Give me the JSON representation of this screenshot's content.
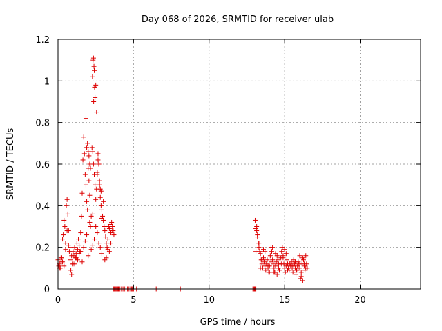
{
  "chart_data": {
    "type": "scatter",
    "title": "Day 068 of 2026, SRMTID for receiver ulab",
    "xlabel": "GPS time / hours",
    "ylabel": "SRMTID / TECUs",
    "xlim": [
      0,
      24
    ],
    "ylim": [
      0,
      1.2
    ],
    "xticks": [
      0,
      5,
      10,
      15,
      20
    ],
    "xtick_labels": [
      "0",
      "5",
      "10",
      "15",
      "20"
    ],
    "yticks": [
      0,
      0.2,
      0.4,
      0.6,
      0.8,
      1.0,
      1.2
    ],
    "ytick_labels": [
      "0",
      "0.2",
      "0.4",
      "0.6",
      "0.8",
      "1",
      "1.2"
    ],
    "grid": true,
    "marker": "+",
    "color": "#dd0000",
    "series": [
      {
        "name": "SRMTID",
        "x": [
          0.0,
          0.05,
          0.1,
          0.15,
          0.2,
          0.25,
          0.3,
          0.35,
          0.4,
          0.45,
          0.5,
          0.55,
          0.6,
          0.65,
          0.7,
          0.75,
          0.8,
          0.85,
          0.9,
          0.95,
          1.0,
          1.05,
          1.1,
          1.15,
          1.2,
          1.25,
          1.3,
          1.35,
          1.4,
          1.45,
          1.5,
          1.55,
          1.6,
          1.65,
          1.7,
          1.75,
          1.8,
          1.85,
          1.9,
          1.95,
          2.0,
          2.05,
          2.1,
          2.15,
          2.2,
          2.25,
          2.3,
          2.35,
          2.4,
          2.45,
          2.5,
          2.55,
          2.6,
          2.65,
          2.7,
          2.75,
          2.8,
          2.85,
          2.9,
          2.95,
          3.0,
          3.05,
          3.1,
          3.15,
          3.2,
          3.25,
          3.3,
          3.35,
          3.4,
          3.45,
          3.5,
          3.55,
          3.6,
          3.65,
          3.7,
          0.1,
          0.3,
          0.5,
          0.7,
          0.9,
          1.1,
          1.3,
          1.5,
          1.7,
          1.9,
          2.1,
          2.3,
          2.5,
          2.7,
          2.9,
          3.1,
          3.3,
          3.5,
          0.2,
          0.6,
          1.0,
          1.4,
          1.8,
          2.2,
          2.6,
          3.0,
          3.4,
          0.4,
          0.8,
          1.2,
          1.6,
          2.0,
          2.4,
          2.8,
          3.2,
          2.3,
          2.35,
          2.32,
          2.38,
          2.4,
          2.42,
          2.45,
          2.36,
          2.28,
          2.5,
          2.55,
          1.85,
          1.9,
          1.95,
          2.0,
          2.05,
          2.1,
          2.15,
          2.6,
          2.65,
          2.7,
          2.75,
          2.8,
          2.85,
          2.9,
          3.6,
          3.65,
          3.7,
          3.75,
          3.8,
          3.85,
          3.9,
          3.95,
          4.0,
          4.1,
          4.2,
          4.3,
          4.4,
          4.5,
          4.6,
          4.7,
          4.8,
          4.85,
          4.9,
          4.95,
          5.0,
          5.2,
          6.5,
          8.1,
          12.9,
          12.95,
          13.0,
          13.05,
          13.1,
          13.0,
          13.05,
          13.1,
          13.15,
          13.2,
          13.25,
          13.3,
          13.35,
          13.4,
          13.45,
          13.5,
          13.55,
          13.6,
          13.65,
          13.7,
          13.75,
          13.8,
          13.85,
          13.9,
          13.95,
          14.0,
          14.05,
          14.1,
          14.15,
          14.2,
          14.25,
          14.3,
          14.35,
          14.4,
          14.45,
          14.5,
          14.55,
          14.6,
          14.65,
          14.7,
          14.75,
          14.8,
          14.85,
          14.9,
          14.95,
          15.0,
          15.05,
          15.1,
          15.15,
          15.2,
          15.25,
          15.3,
          15.35,
          15.4,
          15.45,
          15.5,
          15.55,
          15.6,
          15.65,
          15.7,
          15.75,
          15.8,
          15.85,
          15.9,
          15.95,
          16.0,
          16.05,
          16.1,
          16.15,
          16.2,
          16.25,
          16.3,
          16.35,
          16.4,
          16.45,
          16.5,
          13.1,
          13.3,
          13.5,
          13.7,
          13.9,
          14.1,
          14.3,
          14.5,
          14.7,
          14.9,
          15.1,
          15.3,
          15.5,
          15.7,
          15.9,
          16.1,
          16.3,
          13.2,
          13.6,
          14.0,
          14.4,
          14.8,
          15.2,
          15.6,
          16.0,
          16.4,
          13.15,
          13.4,
          14.2,
          14.6,
          15.0,
          15.8,
          16.2
        ],
        "y": [
          0.14,
          0.11,
          0.12,
          0.1,
          0.13,
          0.15,
          0.24,
          0.26,
          0.33,
          0.3,
          0.22,
          0.4,
          0.43,
          0.36,
          0.28,
          0.18,
          0.14,
          0.09,
          0.07,
          0.12,
          0.18,
          0.16,
          0.2,
          0.15,
          0.17,
          0.22,
          0.19,
          0.24,
          0.21,
          0.18,
          0.27,
          0.35,
          0.46,
          0.62,
          0.73,
          0.65,
          0.55,
          0.5,
          0.42,
          0.38,
          0.58,
          0.52,
          0.45,
          0.3,
          0.35,
          0.68,
          0.66,
          0.6,
          0.55,
          0.5,
          0.43,
          0.48,
          0.56,
          0.62,
          0.6,
          0.5,
          0.44,
          0.47,
          0.38,
          0.35,
          0.42,
          0.3,
          0.28,
          0.25,
          0.22,
          0.2,
          0.24,
          0.3,
          0.29,
          0.31,
          0.27,
          0.32,
          0.3,
          0.28,
          0.26,
          0.1,
          0.13,
          0.19,
          0.21,
          0.16,
          0.12,
          0.14,
          0.18,
          0.2,
          0.26,
          0.32,
          0.36,
          0.3,
          0.22,
          0.17,
          0.14,
          0.19,
          0.22,
          0.15,
          0.28,
          0.12,
          0.17,
          0.23,
          0.19,
          0.27,
          0.33,
          0.18,
          0.11,
          0.2,
          0.15,
          0.13,
          0.16,
          0.24,
          0.2,
          0.15,
          0.21,
          1.11,
          1.1,
          1.07,
          1.05,
          0.97,
          0.92,
          0.9,
          1.02,
          0.98,
          0.85,
          0.82,
          0.68,
          0.7,
          0.66,
          0.64,
          0.6,
          0.58,
          0.55,
          0.65,
          0.6,
          0.52,
          0.48,
          0.4,
          0.34,
          0.28,
          0.0,
          0.0,
          0.0,
          0.0,
          0.0,
          0.0,
          0.0,
          0.0,
          0.0,
          0.0,
          0.0,
          0.0,
          0.0,
          0.0,
          0.0,
          0.0,
          0.0,
          0.0,
          0.0,
          0.0,
          0.0,
          0.0,
          0.0,
          0.0,
          0.0,
          0.0,
          0.0,
          0.0,
          0.0,
          0.33,
          0.29,
          0.28,
          0.25,
          0.22,
          0.2,
          0.18,
          0.17,
          0.14,
          0.12,
          0.1,
          0.15,
          0.13,
          0.11,
          0.09,
          0.12,
          0.14,
          0.1,
          0.08,
          0.11,
          0.16,
          0.2,
          0.18,
          0.14,
          0.12,
          0.1,
          0.08,
          0.11,
          0.13,
          0.16,
          0.14,
          0.1,
          0.09,
          0.12,
          0.15,
          0.18,
          0.2,
          0.16,
          0.12,
          0.1,
          0.08,
          0.11,
          0.14,
          0.12,
          0.1,
          0.09,
          0.12,
          0.11,
          0.13,
          0.1,
          0.08,
          0.11,
          0.12,
          0.1,
          0.07,
          0.09,
          0.11,
          0.13,
          0.12,
          0.1,
          0.05,
          0.08,
          0.12,
          0.15,
          0.14,
          0.11,
          0.09,
          0.16,
          0.12,
          0.1,
          0.18,
          0.22,
          0.14,
          0.18,
          0.11,
          0.13,
          0.08,
          0.07,
          0.12,
          0.15,
          0.17,
          0.09,
          0.11,
          0.13,
          0.1,
          0.06,
          0.12,
          0.26,
          0.19,
          0.08,
          0.17,
          0.12,
          0.09,
          0.14,
          0.16,
          0.1,
          0.3,
          0.1,
          0.2,
          0.12,
          0.19,
          0.09,
          0.04
        ]
      }
    ]
  }
}
